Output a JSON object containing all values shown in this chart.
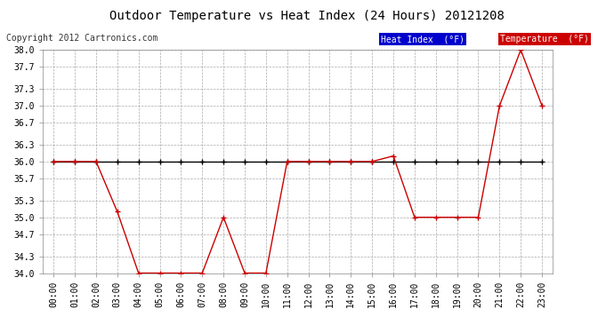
{
  "title": "Outdoor Temperature vs Heat Index (24 Hours) 20121208",
  "copyright": "Copyright 2012 Cartronics.com",
  "background_color": "#ffffff",
  "plot_bg_color": "#ffffff",
  "grid_color": "#aaaaaa",
  "hours": [
    "00:00",
    "01:00",
    "02:00",
    "03:00",
    "04:00",
    "05:00",
    "06:00",
    "07:00",
    "08:00",
    "09:00",
    "10:00",
    "11:00",
    "12:00",
    "13:00",
    "14:00",
    "15:00",
    "16:00",
    "17:00",
    "18:00",
    "19:00",
    "20:00",
    "21:00",
    "22:00",
    "23:00"
  ],
  "heat_index": [
    36.0,
    36.0,
    36.0,
    36.0,
    36.0,
    36.0,
    36.0,
    36.0,
    36.0,
    36.0,
    36.0,
    36.0,
    36.0,
    36.0,
    36.0,
    36.0,
    36.0,
    36.0,
    36.0,
    36.0,
    36.0,
    36.0,
    36.0,
    36.0
  ],
  "temperature": [
    36.0,
    36.0,
    36.0,
    35.1,
    34.0,
    34.0,
    34.0,
    34.0,
    35.0,
    34.0,
    34.0,
    36.0,
    36.0,
    36.0,
    36.0,
    36.0,
    36.1,
    35.0,
    35.0,
    35.0,
    35.0,
    37.0,
    38.0,
    37.0
  ],
  "heat_index_color": "#000000",
  "temp_color": "#cc0000",
  "ylim_min": 34.0,
  "ylim_max": 38.0,
  "yticks": [
    34.0,
    34.3,
    34.7,
    35.0,
    35.3,
    35.7,
    36.0,
    36.3,
    36.7,
    37.0,
    37.3,
    37.7,
    38.0
  ],
  "legend_hi_bg": "#0000cc",
  "legend_hi_fg": "#ffffff",
  "legend_temp_bg": "#cc0000",
  "legend_temp_fg": "#ffffff",
  "legend_hi_text": "Heat Index  (°F)",
  "legend_temp_text": "Temperature  (°F)",
  "marker_size": 4,
  "line_width": 1.0,
  "title_fontsize": 10,
  "tick_fontsize": 7,
  "copyright_fontsize": 7
}
